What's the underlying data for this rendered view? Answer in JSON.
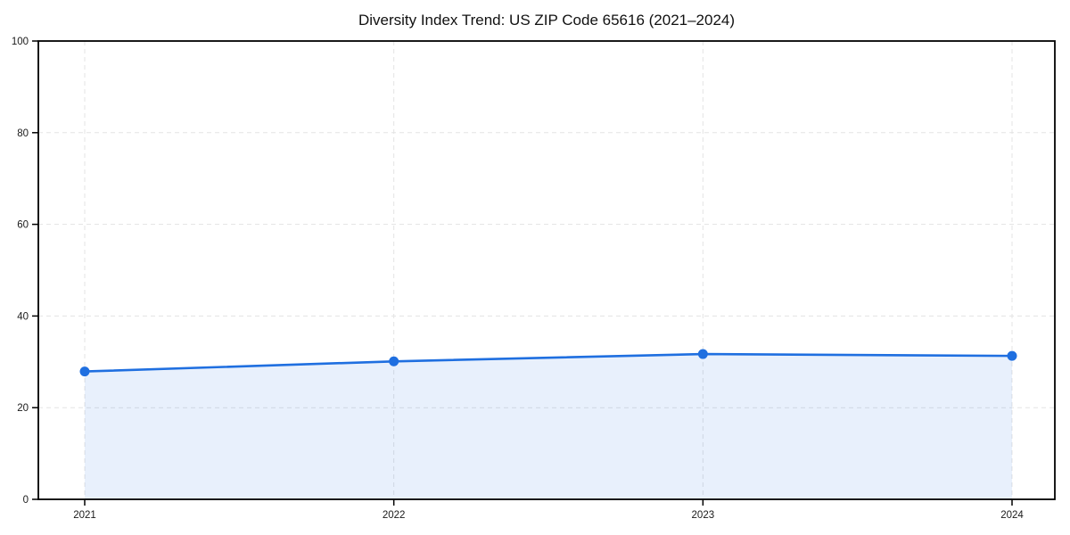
{
  "chart_data": {
    "type": "area",
    "title": "Diversity Index Trend: US ZIP Code 65616 (2021–2024)",
    "x": [
      2021,
      2022,
      2023,
      2024
    ],
    "categories": [
      "2021",
      "2022",
      "2023",
      "2024"
    ],
    "series": [
      {
        "name": "Diversity Index",
        "values": [
          27.9,
          30.1,
          31.7,
          31.3
        ]
      }
    ],
    "xlabel": "",
    "ylabel": "",
    "ylim": [
      0,
      100
    ],
    "yticks": [
      0,
      20,
      40,
      60,
      80,
      100
    ],
    "grid": "dashed-both-axes",
    "legend_position": "none",
    "frame": "full-box",
    "colors": {
      "line": "#1f6fe0",
      "marker": "#1f6fe0",
      "fill": "rgba(31,111,224,0.10)",
      "grid": "#e3e3e3",
      "spine": "#000000",
      "tick_label": "#1a1a1a",
      "title": "#111111",
      "background": "#ffffff"
    }
  }
}
